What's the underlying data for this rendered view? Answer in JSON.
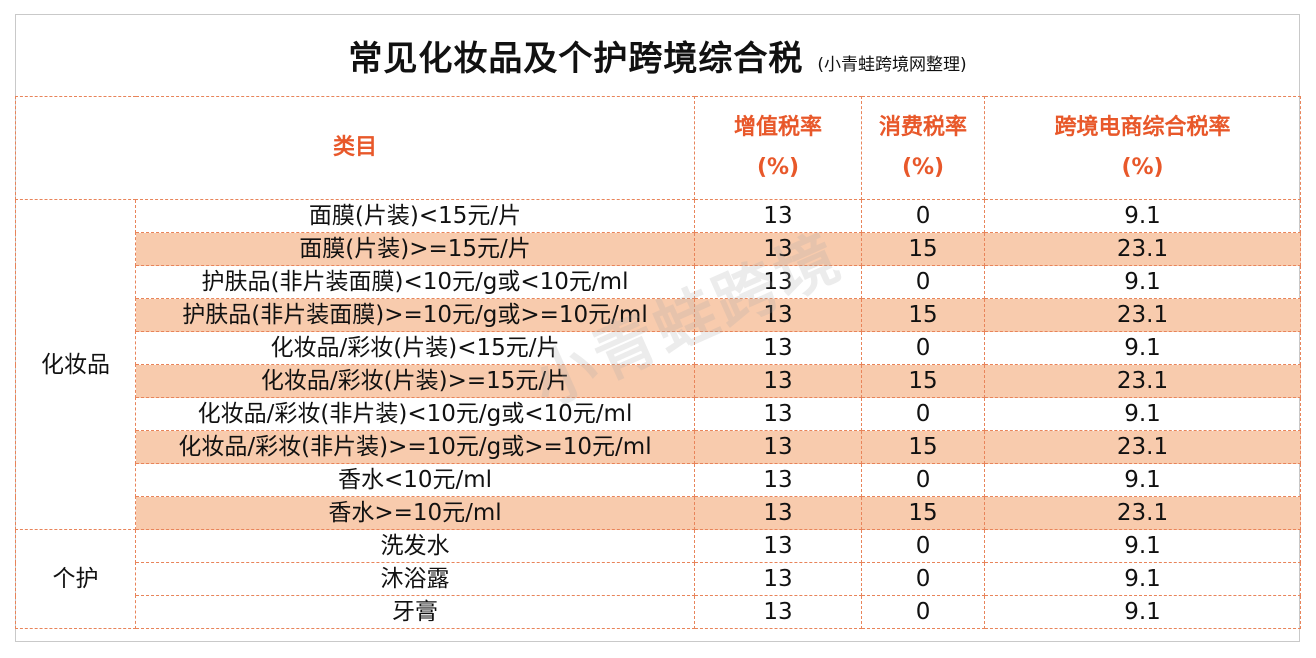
{
  "title": "常见化妆品及个护跨境综合税",
  "subtitle": "(小青蛙跨境网整理)",
  "watermark": "小青蛙跨境",
  "header": {
    "category": "类目",
    "vat_line1": "增值税率",
    "vat_line2": "(%)",
    "consumption_line1": "消费税率",
    "consumption_line2": "(%)",
    "combined_line1": "跨境电商综合税率",
    "combined_line2": "(%)"
  },
  "groups": [
    {
      "name": "化妆品",
      "rows": [
        {
          "item": "面膜(片装)<15元/片",
          "vat": "13",
          "consumption": "0",
          "combined": "9.1"
        },
        {
          "item": "面膜(片装)>=15元/片",
          "vat": "13",
          "consumption": "15",
          "combined": "23.1"
        },
        {
          "item": "护肤品(非片装面膜)<10元/g或<10元/ml",
          "vat": "13",
          "consumption": "0",
          "combined": "9.1"
        },
        {
          "item": "护肤品(非片装面膜)>=10元/g或>=10元/ml",
          "vat": "13",
          "consumption": "15",
          "combined": "23.1"
        },
        {
          "item": "化妆品/彩妆(片装)<15元/片",
          "vat": "13",
          "consumption": "0",
          "combined": "9.1"
        },
        {
          "item": "化妆品/彩妆(片装)>=15元/片",
          "vat": "13",
          "consumption": "15",
          "combined": "23.1"
        },
        {
          "item": "化妆品/彩妆(非片装)<10元/g或<10元/ml",
          "vat": "13",
          "consumption": "0",
          "combined": "9.1"
        },
        {
          "item": "化妆品/彩妆(非片装)>=10元/g或>=10元/ml",
          "vat": "13",
          "consumption": "15",
          "combined": "23.1"
        },
        {
          "item": "香水<10元/ml",
          "vat": "13",
          "consumption": "0",
          "combined": "9.1"
        },
        {
          "item": "香水>=10元/ml",
          "vat": "13",
          "consumption": "15",
          "combined": "23.1"
        }
      ]
    },
    {
      "name": "个护",
      "rows": [
        {
          "item": "洗发水",
          "vat": "13",
          "consumption": "0",
          "combined": "9.1"
        },
        {
          "item": "沐浴露",
          "vat": "13",
          "consumption": "0",
          "combined": "9.1"
        },
        {
          "item": "牙膏",
          "vat": "13",
          "consumption": "0",
          "combined": "9.1"
        }
      ]
    }
  ],
  "colors": {
    "header_text": "#e8582a",
    "border": "#e8845a",
    "highlight_row": "#f8cbad"
  }
}
